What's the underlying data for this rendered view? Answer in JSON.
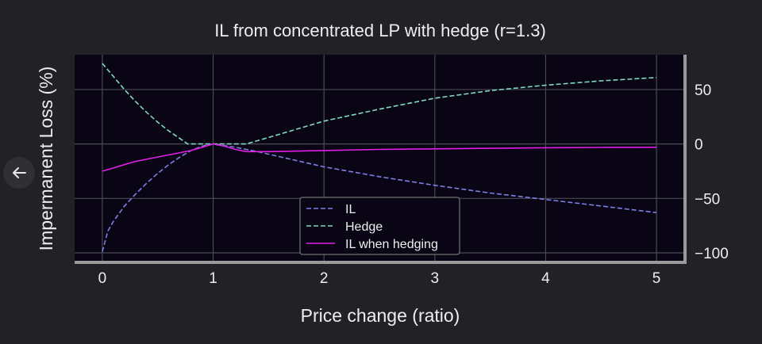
{
  "nav": {
    "back_icon": "arrow-left-icon"
  },
  "colors": {
    "page_bg": "#222125",
    "plot_bg": "#0a0514",
    "grid": "#4a4a52",
    "frame": "#9a9a9a",
    "text": "#eeeeee",
    "il": "#7b7fe6",
    "hedge": "#7fd8c6",
    "il_hedging": "#e21ee8"
  },
  "chart_data": {
    "type": "line",
    "title": "IL from concentrated LP with hedge (r=1.3)",
    "xlabel": "Price change (ratio)",
    "ylabel": "Impermanent Loss (%)",
    "xlim": [
      -0.25,
      5.25
    ],
    "ylim": [
      -108,
      82
    ],
    "xticks": [
      0,
      1,
      2,
      3,
      4,
      5
    ],
    "yticks": [
      50,
      0,
      -50,
      -100
    ],
    "ytick_labels": [
      "50",
      "0",
      "−50",
      "−100"
    ],
    "y_axis_side": "right",
    "grid": true,
    "legend_position": "lower-center",
    "series": [
      {
        "name": "IL",
        "style": "dashed",
        "color": "#7b7fe6",
        "x": [
          0,
          0.05,
          0.1,
          0.2,
          0.3,
          0.4,
          0.5,
          0.6,
          0.7,
          0.8,
          0.9,
          1,
          1.2,
          1.4,
          1.7,
          2,
          2.5,
          3,
          3.5,
          4,
          4.5,
          5
        ],
        "y": [
          -99,
          -80,
          -71,
          -57,
          -46,
          -36,
          -27,
          -19,
          -12,
          -6,
          -2,
          0,
          -3,
          -7,
          -14,
          -21,
          -30,
          -38,
          -45,
          -51,
          -57,
          -63
        ]
      },
      {
        "name": "Hedge",
        "style": "dashed",
        "color": "#7fd8c6",
        "x": [
          0,
          0.1,
          0.2,
          0.3,
          0.4,
          0.5,
          0.6,
          0.7,
          0.77,
          0.85,
          1,
          1.15,
          1.3,
          1.5,
          2,
          2.5,
          3,
          3.5,
          4,
          4.5,
          5
        ],
        "y": [
          74,
          62,
          50,
          39,
          29,
          20,
          12,
          5,
          0,
          0,
          0,
          0,
          0,
          6,
          21,
          32,
          42,
          49,
          54,
          58,
          61
        ]
      },
      {
        "name": "IL when hedging",
        "style": "solid",
        "color": "#e21ee8",
        "x": [
          0,
          0.1,
          0.2,
          0.3,
          0.4,
          0.5,
          0.6,
          0.7,
          0.8,
          0.9,
          1,
          1.1,
          1.2,
          1.3,
          1.5,
          2,
          2.5,
          3,
          3.5,
          4,
          4.5,
          5
        ],
        "y": [
          -25,
          -22,
          -19,
          -16,
          -14,
          -12,
          -10,
          -8,
          -6,
          -3,
          0,
          -2,
          -5,
          -7,
          -7,
          -6,
          -5,
          -4.5,
          -4,
          -3.5,
          -3.2,
          -3
        ]
      }
    ]
  }
}
